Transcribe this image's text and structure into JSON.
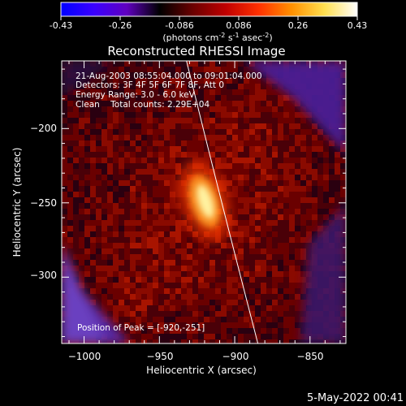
{
  "colorbar": {
    "tick_labels": [
      "-0.43",
      "-0.26",
      "-0.086",
      "0.086",
      "0.26",
      "0.43"
    ],
    "unit_parts": {
      "open": "(photons cm",
      "exp1": "-2",
      "s": " s",
      "exp2": "-1",
      "asec": " asec",
      "exp3": "-2",
      "close": ")"
    },
    "colors": [
      "#0000ff",
      "#3a00ff",
      "#6000c0",
      "#000000",
      "#6a0000",
      "#c00000",
      "#ff3000",
      "#ff9000",
      "#ffe050",
      "#ffffff"
    ]
  },
  "plot": {
    "title": "Reconstructed RHESSI Image",
    "xlabel": "Heliocentric X (arcsec)",
    "ylabel": "Heliocentric Y (arcsec)",
    "x_tick_labels": [
      "−1000",
      "−950",
      "−900",
      "−850"
    ],
    "y_tick_labels": [
      "−200",
      "−250",
      "−300"
    ],
    "info_lines": [
      "21-Aug-2003 08:55:04.000 to 09:01:04.000",
      "Detectors: 3F 4F 5F 6F 7F 8F, Att 0",
      "Energy Range: 3.0 - 6.0 keV",
      "Clean    Total counts: 2.29E+04"
    ],
    "peak_label": "Position of Peak = [-920,-251]",
    "xlim": [
      -1015,
      -826
    ],
    "ylim": [
      -348,
      -163
    ],
    "peak": [
      -920,
      -251
    ]
  },
  "footer": {
    "timestamp": "5-May-2022 00:41"
  }
}
